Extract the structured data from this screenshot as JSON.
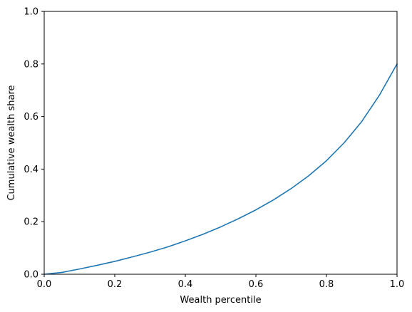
{
  "chart_data": {
    "type": "line",
    "title": "",
    "xlabel": "Wealth percentile",
    "ylabel": "Cumulative wealth share",
    "xlim": [
      0.0,
      1.0
    ],
    "ylim": [
      0.0,
      1.0
    ],
    "grid": false,
    "legend": null,
    "x_ticks": [
      "0.0",
      "0.2",
      "0.4",
      "0.6",
      "0.8",
      "1.0"
    ],
    "y_ticks": [
      "0.0",
      "0.2",
      "0.4",
      "0.6",
      "0.8",
      "1.0"
    ],
    "series": [
      {
        "color": "#1f77b4",
        "x": [
          0.0,
          0.05,
          0.1,
          0.15,
          0.2,
          0.25,
          0.3,
          0.35,
          0.4,
          0.45,
          0.5,
          0.55,
          0.6,
          0.65,
          0.7,
          0.75,
          0.8,
          0.85,
          0.9,
          0.95,
          1.0
        ],
        "y": [
          0.0,
          0.007,
          0.02,
          0.034,
          0.049,
          0.066,
          0.084,
          0.104,
          0.127,
          0.152,
          0.18,
          0.211,
          0.245,
          0.283,
          0.326,
          0.375,
          0.432,
          0.5,
          0.581,
          0.681,
          0.8
        ]
      }
    ]
  }
}
